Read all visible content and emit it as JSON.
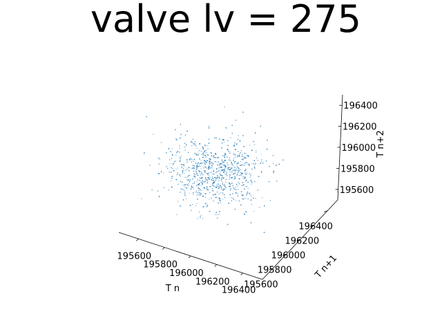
{
  "chart_data": {
    "type": "scatter",
    "projection": "3d",
    "title": "valve lv = 275",
    "xlabel": "T n",
    "ylabel": "T n+1",
    "zlabel": "T n+2",
    "x_ticks": [
      "195600",
      "195800",
      "196000",
      "196200",
      "196400"
    ],
    "y_ticks": [
      "195600",
      "195800",
      "196000",
      "196200",
      "196400"
    ],
    "z_ticks": [
      "195600",
      "195800",
      "196000",
      "196200",
      "196400"
    ],
    "xlim": [
      195450,
      196550
    ],
    "ylim": [
      195450,
      196550
    ],
    "zlim": [
      195500,
      196500
    ],
    "grid": false,
    "marker_color": "#1f77b4",
    "marker_size": "small",
    "point_count": 800,
    "distribution": "roughly spherical cloud of points centred near 196000 on all three axes, spread about ±250"
  }
}
